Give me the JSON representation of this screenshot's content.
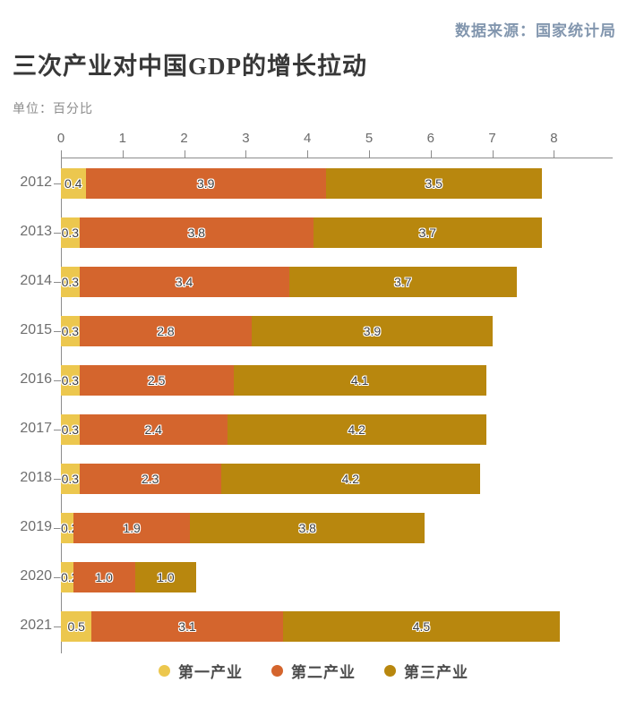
{
  "source_label": "数据来源：国家统计局",
  "title": "三次产业对中国GDP的增长拉动",
  "unit_label": "单位：百分比",
  "chart_data": {
    "type": "bar",
    "orientation": "horizontal",
    "stacked": true,
    "title": "三次产业对中国GDP的增长拉动",
    "unit": "百分比",
    "axis_position": "top",
    "legend_position": "bottom",
    "grid": false,
    "xlim": [
      0,
      8
    ],
    "x_ticks": [
      0,
      1,
      2,
      3,
      4,
      5,
      6,
      7,
      8
    ],
    "categories": [
      "2012",
      "2013",
      "2014",
      "2015",
      "2016",
      "2017",
      "2018",
      "2019",
      "2020",
      "2021"
    ],
    "series": [
      {
        "name": "第一产业",
        "color": "#ecc74e",
        "values": [
          0.4,
          0.3,
          0.3,
          0.3,
          0.3,
          0.3,
          0.3,
          0.2,
          0.2,
          0.5
        ]
      },
      {
        "name": "第二产业",
        "color": "#d4652d",
        "values": [
          3.9,
          3.8,
          3.4,
          2.8,
          2.5,
          2.4,
          2.3,
          1.9,
          1.0,
          3.1
        ]
      },
      {
        "name": "第三产业",
        "color": "#b8870e",
        "values": [
          3.5,
          3.7,
          3.7,
          3.9,
          4.1,
          4.2,
          4.2,
          3.8,
          1.0,
          4.5
        ]
      }
    ],
    "colors": {
      "axis": "#8c8c8c",
      "value_label": "#3f3f3f",
      "year_label": "#6e6e6e",
      "title": "#383838",
      "source": "#8296ae"
    }
  }
}
